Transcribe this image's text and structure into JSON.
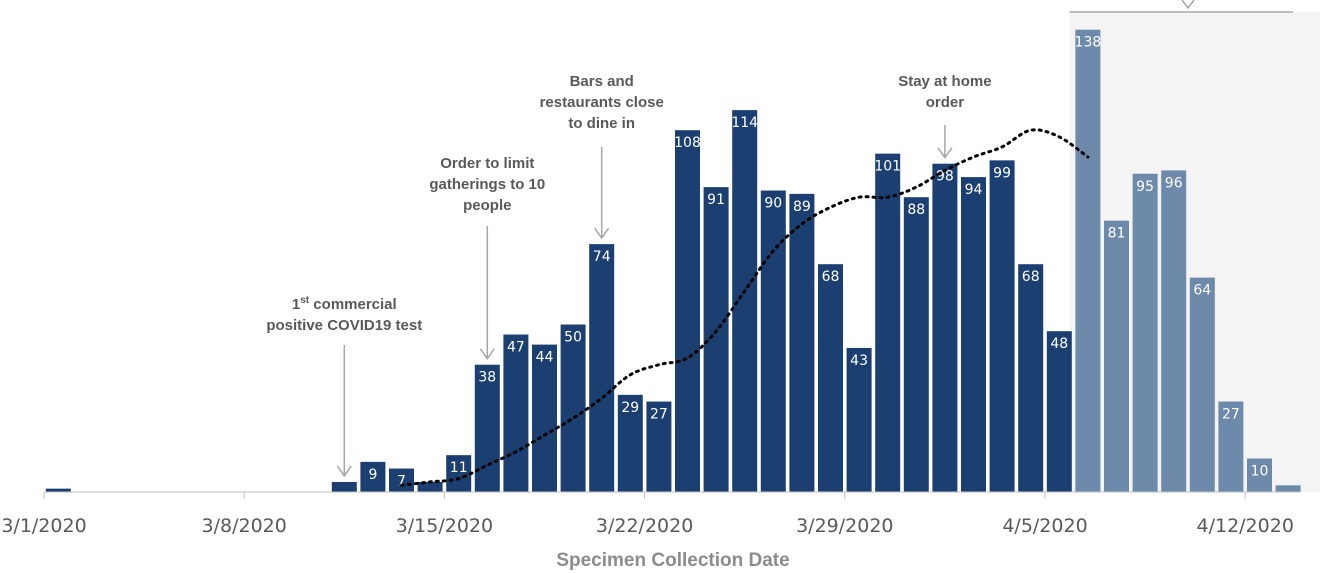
{
  "chart_data": {
    "type": "bar",
    "xlabel": "Specimen Collection Date",
    "x_ticks": [
      "3/1/2020",
      "3/8/2020",
      "3/15/2020",
      "3/22/2020",
      "3/29/2020",
      "4/5/2020",
      "4/12/2020"
    ],
    "dates": [
      "3/1/2020",
      "3/2/2020",
      "3/3/2020",
      "3/4/2020",
      "3/5/2020",
      "3/6/2020",
      "3/7/2020",
      "3/8/2020",
      "3/9/2020",
      "3/10/2020",
      "3/11/2020",
      "3/12/2020",
      "3/13/2020",
      "3/14/2020",
      "3/15/2020",
      "3/16/2020",
      "3/17/2020",
      "3/18/2020",
      "3/19/2020",
      "3/20/2020",
      "3/21/2020",
      "3/22/2020",
      "3/23/2020",
      "3/24/2020",
      "3/25/2020",
      "3/26/2020",
      "3/27/2020",
      "3/28/2020",
      "3/29/2020",
      "3/30/2020",
      "3/31/2020",
      "4/1/2020",
      "4/2/2020",
      "4/3/2020",
      "4/4/2020",
      "4/5/2020",
      "4/6/2020",
      "4/7/2020",
      "4/8/2020",
      "4/9/2020",
      "4/10/2020",
      "4/11/2020",
      "4/12/2020",
      "4/13/2020"
    ],
    "values": [
      1,
      0,
      0,
      0,
      0,
      0,
      0,
      0,
      0,
      0,
      3,
      9,
      7,
      3,
      11,
      38,
      47,
      44,
      50,
      74,
      29,
      27,
      108,
      91,
      114,
      90,
      89,
      68,
      43,
      101,
      88,
      98,
      94,
      99,
      68,
      48,
      138,
      81,
      95,
      96,
      64,
      27,
      10,
      2
    ],
    "data_labels": [
      "",
      "",
      "",
      "",
      "",
      "",
      "",
      "",
      "",
      "",
      "",
      "9",
      "7",
      "",
      "11",
      "38",
      "47",
      "44",
      "50",
      "74",
      "29",
      "27",
      "108",
      "91",
      "114",
      "90",
      "89",
      "68",
      "43",
      "101",
      "88",
      "98",
      "94",
      "99",
      "68",
      "48",
      "138",
      "81",
      "95",
      "96",
      "64",
      "27",
      "10",
      ""
    ],
    "trend_line": {
      "style": "dotted",
      "start_date": "3/13/2020",
      "values": [
        2,
        3,
        4,
        8,
        12,
        17,
        22,
        28,
        35,
        38,
        40,
        48,
        60,
        72,
        80,
        85,
        88,
        88,
        91,
        96,
        100,
        103,
        108,
        106,
        100
      ]
    },
    "highlight_from_date": "4/6/2020",
    "colors": {
      "bar": "#1c3f72",
      "bar_highlight": "#6e8aab",
      "highlight_bg": "#f4f4f4",
      "trend": "#000000",
      "axis": "#bfbfbf",
      "annotation_arrow": "#a6a6a6",
      "annotation_text": "#595959"
    },
    "annotations": [
      {
        "date": "3/11/2020",
        "lines": [
          "1st commercial",
          "positive COVID19 test"
        ]
      },
      {
        "date": "3/16/2020",
        "lines": [
          "Order to limit",
          "gatherings to 10",
          "people"
        ]
      },
      {
        "date": "3/20/2020",
        "lines": [
          "Bars and",
          "restaurants close",
          "to dine in"
        ]
      },
      {
        "date": "4/1/2020",
        "lines": [
          "Stay at home",
          "order"
        ]
      }
    ]
  }
}
